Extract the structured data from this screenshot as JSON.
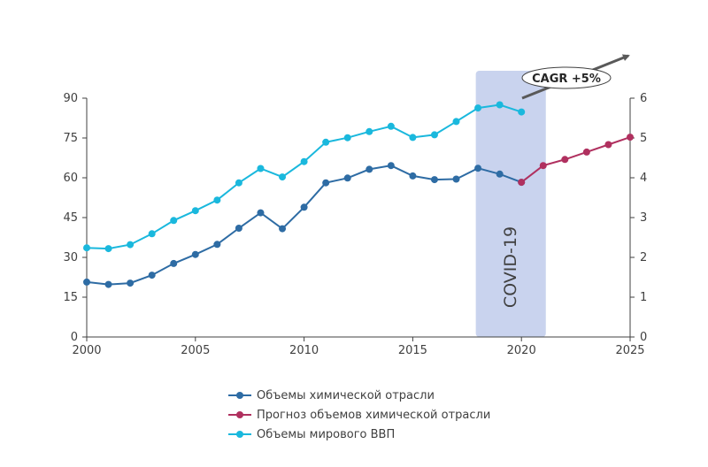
{
  "chart_data": {
    "type": "line",
    "x": [
      2000,
      2001,
      2002,
      2003,
      2004,
      2005,
      2006,
      2007,
      2008,
      2009,
      2010,
      2011,
      2012,
      2013,
      2014,
      2015,
      2016,
      2017,
      2018,
      2019,
      2020,
      2021,
      2022,
      2023,
      2024,
      2025
    ],
    "xlim": [
      2000,
      2025
    ],
    "xticks": [
      "2000",
      "2005",
      "2010",
      "2015",
      "2020",
      "2025"
    ],
    "ylim_left": [
      0,
      90
    ],
    "yticks_left": [
      "0",
      "15",
      "30",
      "45",
      "60",
      "75",
      "90"
    ],
    "ylim_right": [
      0,
      6
    ],
    "yticks_right": [
      "0",
      "1",
      "2",
      "3",
      "4",
      "5",
      "6"
    ],
    "series": [
      {
        "name": "Объемы химической отрасли",
        "color": "#2e6ca4",
        "axis": "left",
        "x": [
          2000,
          2001,
          2002,
          2003,
          2004,
          2005,
          2006,
          2007,
          2008,
          2009,
          2010,
          2011,
          2012,
          2013,
          2014,
          2015,
          2016,
          2017,
          2018,
          2019,
          2020
        ],
        "values": [
          20.7,
          19.8,
          20.3,
          23.3,
          27.7,
          31.1,
          34.9,
          41.0,
          46.8,
          40.8,
          48.9,
          58.1,
          59.9,
          63.2,
          64.6,
          60.7,
          59.3,
          59.5,
          63.6,
          61.4,
          58.3
        ]
      },
      {
        "name": "Прогноз объемов химической отрасли",
        "color": "#b0305f",
        "axis": "left",
        "x": [
          2020,
          2021,
          2022,
          2023,
          2024,
          2025
        ],
        "values": [
          58.3,
          64.6,
          66.9,
          69.7,
          72.5,
          75.3
        ]
      },
      {
        "name": "Объемы мирового ВВП",
        "color": "#1ab8dd",
        "axis": "left",
        "x": [
          2000,
          2001,
          2002,
          2003,
          2004,
          2005,
          2006,
          2007,
          2008,
          2009,
          2010,
          2011,
          2012,
          2013,
          2014,
          2015,
          2016,
          2017,
          2018,
          2019,
          2020
        ],
        "values": [
          33.6,
          33.3,
          34.8,
          38.9,
          43.9,
          47.6,
          51.6,
          58.1,
          63.5,
          60.3,
          66.1,
          73.4,
          75.1,
          77.4,
          79.4,
          75.2,
          76.2,
          81.2,
          86.3,
          87.5,
          84.8
        ]
      }
    ],
    "annotations": {
      "covid_band": {
        "x_start": 2019,
        "x_end": 2021,
        "label": "COVID-19",
        "color": "#c9d3ee"
      },
      "cagr": {
        "label": "CAGR +5%",
        "arrow_color": "#595959"
      }
    },
    "legend_placement": "bottom"
  }
}
